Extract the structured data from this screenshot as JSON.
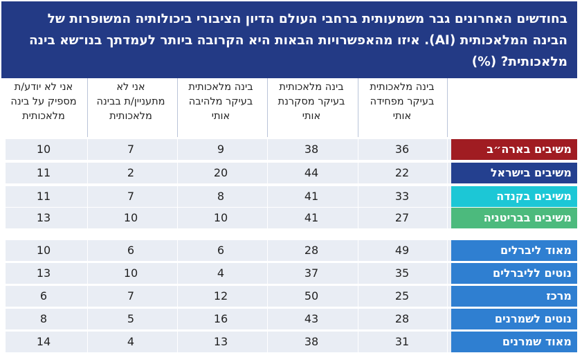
{
  "title": "בחודשים האחרונים גבר משמעותית ברחבי העולם הדיון הציבורי ביכולותיה המשופרות של הבינה המלאכותית (AI). איזו מהאפשרויות הבאות היא הקרובה ביותר לעמדתך בנו־שא בינה מלאכותית? (%)",
  "chart_data": {
    "type": "table",
    "columns": [
      "בינה מלאכותית\nבעיקר מפחידה\nאותי",
      "בינה מלאכותית\nבעיקר מסקרנת\nאותי",
      "בינה מלאכותית\nבעיקר מלהיבה\nאותי",
      "אני לא\nמתעניין/ת בבינה\nמלאכותית",
      "אני לא יודע/ת\nמספיק על בינה\nמלאכותית"
    ],
    "rows": [
      {
        "label": "משיבים בארה״ב",
        "color": "#a01c22",
        "values": [
          36,
          38,
          9,
          7,
          10
        ]
      },
      {
        "label": "משיבים בישראל",
        "color": "#24408f",
        "values": [
          22,
          44,
          20,
          2,
          11
        ]
      },
      {
        "label": "משיבים בקנדה",
        "color": "#1cc7d6",
        "values": [
          33,
          41,
          8,
          7,
          11
        ]
      },
      {
        "label": "משיבים בבריטניה",
        "color": "#4cba7d",
        "values": [
          27,
          41,
          10,
          10,
          13
        ]
      },
      {
        "label": "מאוד ליברלים",
        "color": "#2f7fd1",
        "values": [
          49,
          28,
          6,
          6,
          10
        ]
      },
      {
        "label": "נוטים לליברלים",
        "color": "#2f7fd1",
        "values": [
          35,
          37,
          4,
          10,
          13
        ]
      },
      {
        "label": "מרכז",
        "color": "#2f7fd1",
        "values": [
          25,
          50,
          12,
          7,
          6
        ]
      },
      {
        "label": "נוטים לשמרנים",
        "color": "#2f7fd1",
        "values": [
          28,
          43,
          16,
          5,
          8
        ]
      },
      {
        "label": "מאוד שמרנים",
        "color": "#2f7fd1",
        "values": [
          31,
          38,
          13,
          4,
          14
        ]
      }
    ]
  }
}
